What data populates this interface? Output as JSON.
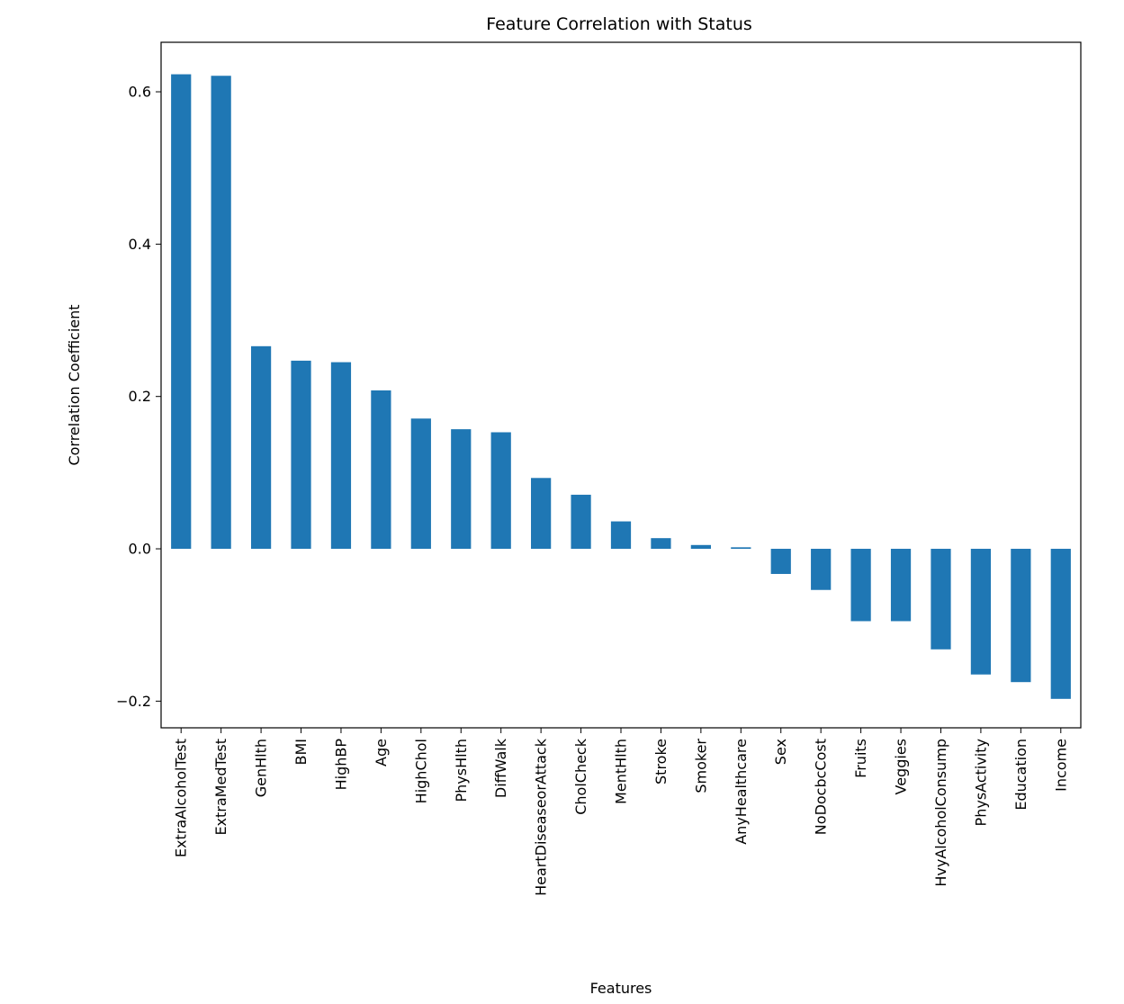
{
  "chart_data": {
    "type": "bar",
    "title": "Feature Correlation with Status",
    "xlabel": "Features",
    "ylabel": "Correlation Coefficient",
    "ylim": [
      -0.235,
      0.665
    ],
    "yticks": [
      -0.2,
      0.0,
      0.2,
      0.4,
      0.6
    ],
    "ytick_labels": [
      "−0.2",
      "0.0",
      "0.2",
      "0.4",
      "0.6"
    ],
    "grid": false,
    "bar_color": "#1f77b4",
    "categories": [
      "ExtraAlcoholTest",
      "ExtraMedTest",
      "GenHlth",
      "BMI",
      "HighBP",
      "Age",
      "HighChol",
      "PhysHlth",
      "DiffWalk",
      "HeartDiseaseorAttack",
      "CholCheck",
      "MentHlth",
      "Stroke",
      "Smoker",
      "AnyHealthcare",
      "Sex",
      "NoDocbcCost",
      "Fruits",
      "Veggies",
      "HvyAlcoholConsump",
      "PhysActivity",
      "Education",
      "Income"
    ],
    "values": [
      0.623,
      0.621,
      0.266,
      0.247,
      0.245,
      0.208,
      0.171,
      0.157,
      0.153,
      0.093,
      0.071,
      0.036,
      0.014,
      0.005,
      0.002,
      -0.033,
      -0.054,
      -0.095,
      -0.095,
      -0.132,
      -0.165,
      -0.175,
      -0.197
    ]
  }
}
